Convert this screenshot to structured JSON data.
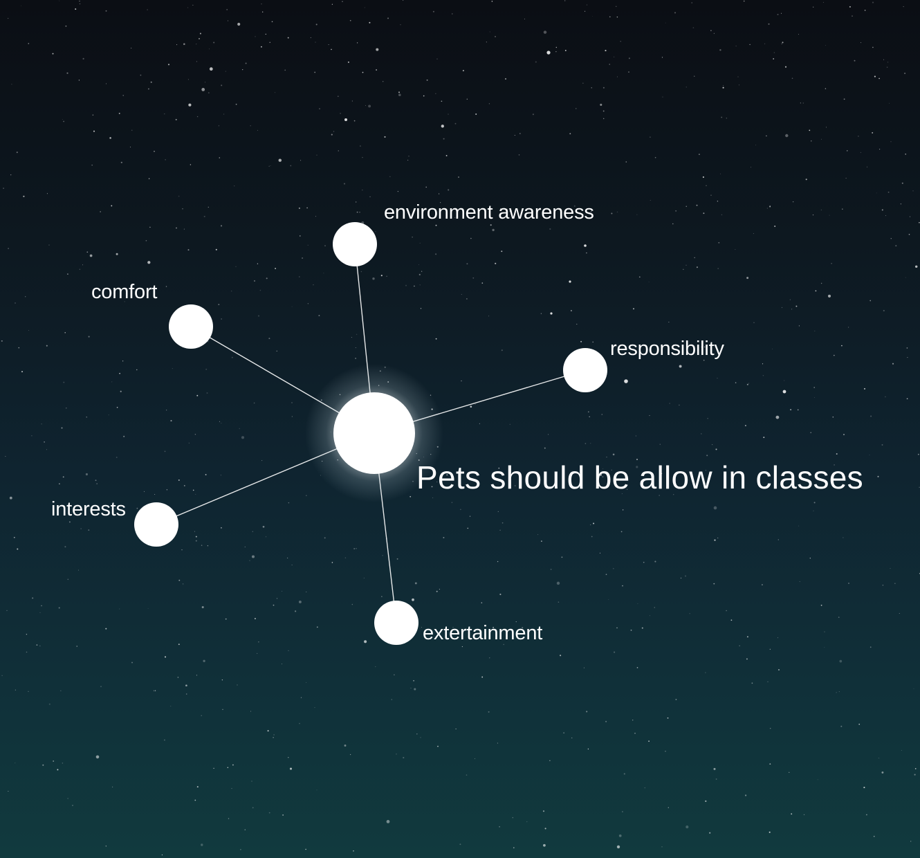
{
  "diagram": {
    "title": "Pets should be allow in classes",
    "nodes": [
      {
        "id": "environment",
        "label": "environment awareness"
      },
      {
        "id": "comfort",
        "label": "comfort"
      },
      {
        "id": "responsibility",
        "label": "responsibility"
      },
      {
        "id": "interests",
        "label": "interests"
      },
      {
        "id": "entertainment",
        "label": "extertainment"
      }
    ]
  },
  "colors": {
    "node": "#ffffff",
    "background_top": "#0b0e14",
    "background_bottom": "#113a3e"
  }
}
